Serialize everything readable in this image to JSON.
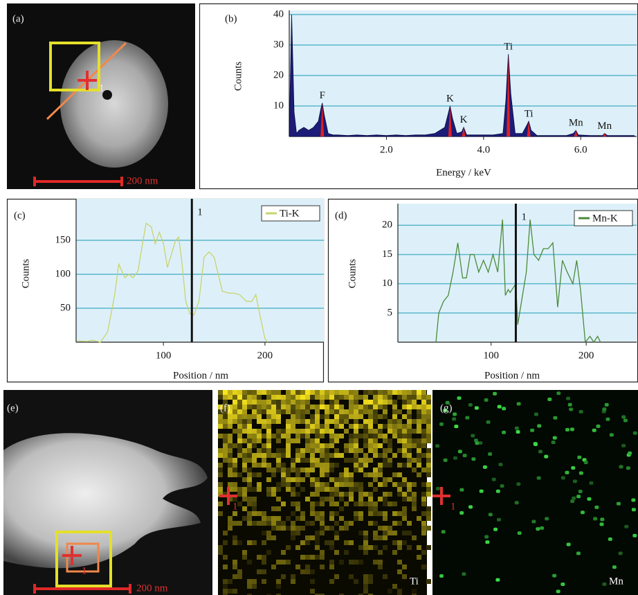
{
  "images": [
    {
      "label": "(a)",
      "scale_bar": "200 nm",
      "marker": "1"
    },
    {
      "label": "(e)",
      "scale_bar": "200 nm",
      "marker": "1"
    },
    {
      "label": "(f)",
      "marker": "1",
      "element": "Ti"
    },
    {
      "label": "(g)",
      "marker": "1",
      "element": "Mn"
    }
  ],
  "chart_data": [
    {
      "type": "area",
      "panel": "(b)",
      "xlabel": "Energy / keV",
      "ylabel": "Counts",
      "x": [
        0.0,
        0.05,
        0.1,
        0.15,
        0.2,
        0.3,
        0.4,
        0.5,
        0.6,
        0.65,
        0.68,
        0.72,
        0.8,
        0.9,
        1.0,
        1.2,
        1.4,
        1.6,
        1.8,
        2.0,
        2.2,
        2.4,
        2.6,
        2.8,
        3.0,
        3.2,
        3.28,
        3.31,
        3.36,
        3.45,
        3.55,
        3.59,
        3.65,
        3.8,
        4.0,
        4.2,
        4.4,
        4.46,
        4.51,
        4.56,
        4.65,
        4.8,
        4.9,
        4.93,
        4.98,
        5.1,
        5.4,
        5.7,
        5.85,
        5.9,
        5.95,
        6.2,
        6.45,
        6.49,
        6.55,
        6.8,
        7.1
      ],
      "values": [
        1,
        40,
        8,
        1,
        2,
        3,
        2,
        3,
        5,
        9,
        11,
        7,
        1,
        0.5,
        0.5,
        0.3,
        0.5,
        0.3,
        0.5,
        0.3,
        0.5,
        0.3,
        0.5,
        0.5,
        1,
        3,
        8,
        10,
        6,
        1,
        1.5,
        3,
        0.5,
        0.5,
        0.5,
        0.5,
        1,
        12,
        27,
        14,
        1,
        1,
        4,
        5,
        2,
        0.3,
        0.3,
        0.3,
        1,
        2,
        0.5,
        0.3,
        0.3,
        1,
        0.3,
        0.3,
        0.3
      ],
      "color": "#1c1c78",
      "xlim": [
        0,
        7.15
      ],
      "ylim": [
        0,
        40
      ],
      "xticks": [
        {
          "value": 2,
          "label": "2.0"
        },
        {
          "value": 4,
          "label": "4.0"
        },
        {
          "value": 6,
          "label": "6.0"
        }
      ],
      "yticks": [
        10,
        20,
        30,
        40
      ],
      "grid": true,
      "peaks": [
        {
          "label": "F",
          "energy": 0.68,
          "counts": 11
        },
        {
          "label": "K",
          "energy": 3.31,
          "counts": 10
        },
        {
          "label": "K",
          "energy": 3.59,
          "counts": 3
        },
        {
          "label": "Ti",
          "energy": 4.51,
          "counts": 27
        },
        {
          "label": "Ti",
          "energy": 4.93,
          "counts": 5
        },
        {
          "label": "Mn",
          "energy": 5.9,
          "counts": 2
        },
        {
          "label": "Mn",
          "energy": 6.49,
          "counts": 1
        }
      ],
      "peak_color": "#e02020"
    },
    {
      "type": "line",
      "panel": "(c)",
      "xlabel": "Position / nm",
      "ylabel": "Counts",
      "x": [
        15,
        25,
        30,
        38,
        45,
        52,
        56,
        62,
        66,
        70,
        75,
        80,
        83,
        88,
        92,
        96,
        100,
        104,
        108,
        112,
        115,
        118,
        122,
        126,
        130,
        135,
        140,
        145,
        150,
        154,
        158,
        165,
        170,
        175,
        182,
        187,
        191,
        195,
        200,
        203
      ],
      "series": [
        {
          "name": "Ti-K",
          "color": "#c9d36b",
          "values": [
            2,
            1,
            3,
            0,
            15,
            70,
            115,
            95,
            100,
            95,
            105,
            150,
            175,
            170,
            145,
            162,
            145,
            110,
            130,
            150,
            155,
            120,
            60,
            42,
            40,
            60,
            125,
            133,
            125,
            100,
            75,
            72,
            72,
            70,
            60,
            60,
            70,
            40,
            5,
            0
          ]
        }
      ],
      "xlim": [
        14,
        258
      ],
      "ylim": [
        0,
        205
      ],
      "xticks": [
        100,
        200
      ],
      "yticks": [
        50,
        100,
        150
      ],
      "grid": true,
      "legend": "upper right",
      "marker": {
        "x": 128,
        "label": "1"
      }
    },
    {
      "type": "line",
      "panel": "(d)",
      "xlabel": "Position / nm",
      "ylabel": "Counts",
      "x": [
        42,
        45,
        50,
        55,
        60,
        65,
        70,
        74,
        78,
        82,
        87,
        92,
        97,
        102,
        107,
        112,
        115,
        118,
        120,
        126,
        128,
        132,
        137,
        141,
        145,
        150,
        155,
        160,
        165,
        170,
        175,
        180,
        186,
        190,
        194,
        199,
        204,
        208,
        212,
        215
      ],
      "series": [
        {
          "name": "Mn-K",
          "color": "#4a8a3a",
          "values": [
            0,
            5,
            7,
            8,
            12,
            17,
            11,
            11,
            15,
            15,
            12,
            14,
            12,
            15,
            12,
            21,
            8,
            9,
            8.5,
            10,
            3,
            7,
            12,
            21,
            15,
            14,
            16,
            16,
            17,
            6,
            14,
            12,
            10,
            14,
            9,
            0,
            1,
            0,
            1,
            0
          ]
        }
      ],
      "xlim": [
        2,
        253
      ],
      "ylim": [
        0,
        23
      ],
      "xticks": [
        100,
        200
      ],
      "yticks": [
        5,
        10,
        15,
        20
      ],
      "grid": true,
      "legend": "upper right",
      "marker": {
        "x": 126,
        "label": "1"
      }
    }
  ]
}
